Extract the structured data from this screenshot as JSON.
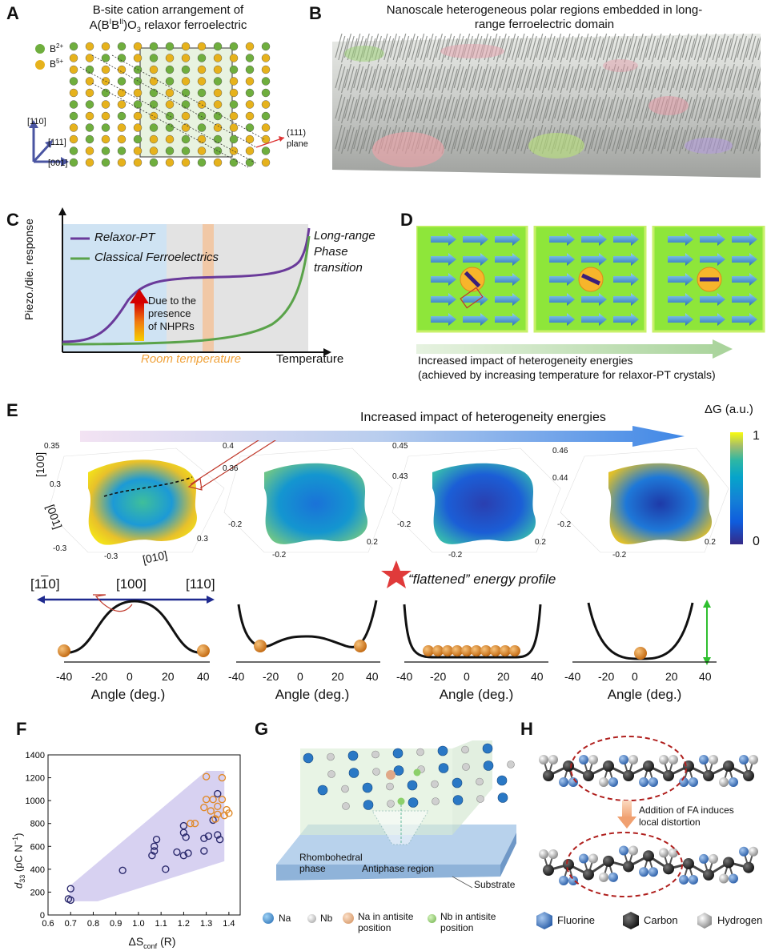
{
  "panels": {
    "A": {
      "label": "A",
      "title_line1": "B-site cation arrangement of",
      "title_line2": "A(B",
      "title_sup1": "I",
      "title_mid": "B",
      "title_sup2": "II",
      "title_end": ")O",
      "title_sub": "3",
      "title_tail": " relaxor ferroelectric",
      "legend_b2": "B",
      "legend_b2_sup": "2+",
      "legend_b5": "B",
      "legend_b5_sup": "5+",
      "axis_110": "[110]",
      "axis_111": "[111]",
      "axis_001": "[001]",
      "plane_label_1": "(111)",
      "plane_label_2": "plane",
      "colors": {
        "b2": "#6fae3e",
        "b5": "#e6b21c"
      }
    },
    "B": {
      "label": "B",
      "title_line1": "Nanoscale heterogeneous polar regions embedded in long-",
      "title_line2": "range ferroelectric domain"
    },
    "C": {
      "label": "C",
      "ylabel": "Piezo./die. response",
      "xlabel": "Temperature",
      "legend_relaxor": "Relaxor-PT",
      "legend_classical": "Classical Ferroelectrics",
      "note_1": "Long-range",
      "note_2": "Phase",
      "note_3": "transition",
      "due_1": "Due to the",
      "due_2": "presence",
      "due_3": "of NHPRs",
      "room_temp": "Room temperature",
      "colors": {
        "relaxor": "#6a3a9a",
        "classical": "#5aa34a",
        "room": "#f0a23a"
      }
    },
    "D": {
      "label": "D",
      "caption_1": "Increased impact of heterogeneity energies",
      "caption_2": "(achieved by increasing temperature for relaxor-PT crystals)"
    },
    "E": {
      "label": "E",
      "arrow_text": "Increased impact of heterogeneity energies",
      "dg_label": "ΔG (a.u.)",
      "cbar_max": "1",
      "cbar_min": "0",
      "surfaces": [
        {
          "z_top": "0.35",
          "z_bot": "0.3",
          "x_left": "-0.3",
          "x_right": "0.3",
          "y_left": "-0.3",
          "y_right": "0.3",
          "axis_100": "[100]",
          "axis_001": "[001]",
          "axis_010": "[010]"
        },
        {
          "z_top": "0.4",
          "z_bot": "0.36",
          "x_left": "-0.2",
          "x_right": "0.2",
          "y_left": "-0.2",
          "y_right": "0.2"
        },
        {
          "z_top": "0.45",
          "z_bot": "0.43",
          "x_left": "-0.2",
          "x_right": "0.2",
          "y_left": "-0.2",
          "y_right": "0.2"
        },
        {
          "z_top": "0.46",
          "z_bot": "0.44",
          "x_left": "-0.2",
          "x_right": "0.2",
          "y_left": "-0.2",
          "y_right": "0.2"
        }
      ],
      "dir_1m10": "[1",
      "dir_1m10_bar": "1",
      "dir_1m10_end": "0]",
      "dir_100": "[100]",
      "dir_110": "[110]",
      "flattened": "“flattened” energy profile",
      "profile_xlabel": "Angle (deg.)",
      "profile_ticks": [
        "-40",
        "-20",
        "0",
        "20",
        "40"
      ]
    },
    "F": {
      "label": "F",
      "ylabel_main": "d",
      "ylabel_sub": "33",
      "ylabel_unit": " (pC N",
      "ylabel_unit_sup": "−1",
      "ylabel_close": ")",
      "xlabel_main": "ΔS",
      "xlabel_sub": "conf",
      "xlabel_unit": " (R)",
      "colors": {
        "dark": "#2c2b6e",
        "orange": "#e08a2a",
        "region": "#c9c2ec"
      }
    },
    "G": {
      "label": "G",
      "rhombohedral_1": "Rhombohedral",
      "rhombohedral_2": "phase",
      "antiphase": "Antiphase region",
      "substrate": "Substrate",
      "legend_na": "Na",
      "legend_nb": "Nb",
      "legend_na_anti_1": "Na in antisite",
      "legend_na_anti_2": "position",
      "legend_nb_anti_1": "Nb in antisite",
      "legend_nb_anti_2": "position"
    },
    "H": {
      "label": "H",
      "note_1": "Addition of FA induces",
      "note_2": "local distortion",
      "legend_f": "Fluorine",
      "legend_c": "Carbon",
      "legend_h": "Hydrogen"
    }
  },
  "chart_data": {
    "type": "scatter",
    "xlabel": "ΔSconf (R)",
    "ylabel": "d33 (pC N−1)",
    "xlim": [
      0.6,
      1.45
    ],
    "ylim": [
      0,
      1400
    ],
    "xticks": [
      "0.6",
      "0.7",
      "0.8",
      "0.9",
      "1.0",
      "1.1",
      "1.2",
      "1.3",
      "1.4"
    ],
    "yticks": [
      "0",
      "200",
      "400",
      "600",
      "800",
      "1000",
      "1200",
      "1400"
    ],
    "series": [
      {
        "color": "#2c2b6e",
        "points": [
          [
            0.69,
            140
          ],
          [
            0.7,
            230
          ],
          [
            0.7,
            130
          ],
          [
            0.93,
            390
          ],
          [
            1.06,
            520
          ],
          [
            1.07,
            600
          ],
          [
            1.07,
            560
          ],
          [
            1.08,
            660
          ],
          [
            1.12,
            400
          ],
          [
            1.17,
            550
          ],
          [
            1.2,
            780
          ],
          [
            1.2,
            720
          ],
          [
            1.21,
            680
          ],
          [
            1.2,
            520
          ],
          [
            1.22,
            540
          ],
          [
            1.29,
            560
          ],
          [
            1.29,
            670
          ],
          [
            1.31,
            690
          ],
          [
            1.33,
            830
          ],
          [
            1.35,
            700
          ],
          [
            1.35,
            1060
          ],
          [
            1.36,
            660
          ]
        ]
      },
      {
        "color": "#e08a2a",
        "points": [
          [
            1.23,
            800
          ],
          [
            1.25,
            800
          ],
          [
            1.29,
            940
          ],
          [
            1.3,
            1210
          ],
          [
            1.3,
            1010
          ],
          [
            1.32,
            910
          ],
          [
            1.33,
            1010
          ],
          [
            1.34,
            840
          ],
          [
            1.35,
            950
          ],
          [
            1.35,
            880
          ],
          [
            1.37,
            1200
          ],
          [
            1.37,
            1010
          ],
          [
            1.38,
            870
          ],
          [
            1.39,
            920
          ],
          [
            1.4,
            890
          ]
        ]
      }
    ]
  }
}
